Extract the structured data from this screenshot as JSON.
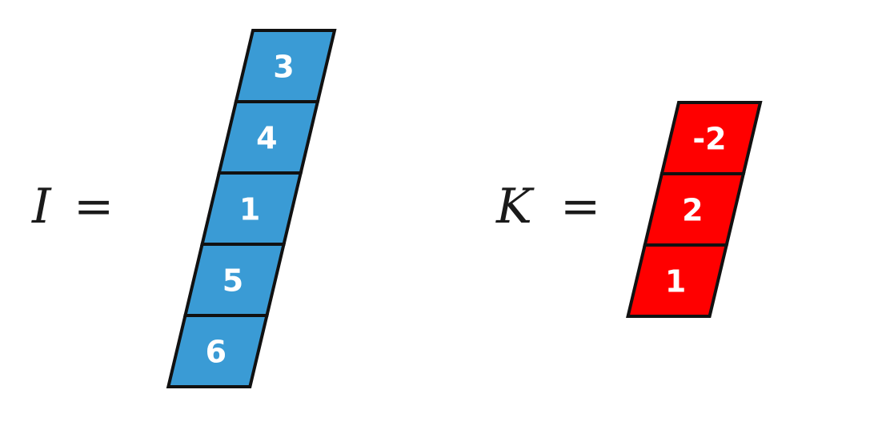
{
  "vectors": [
    {
      "symbol": "I",
      "equals": "=",
      "fill_color": "#3a9bd5",
      "values": [
        "3",
        "4",
        "1",
        "5",
        "6"
      ]
    },
    {
      "symbol": "K",
      "equals": "=",
      "fill_color": "#ff0000",
      "values": [
        "-2",
        "2",
        "1"
      ]
    }
  ]
}
